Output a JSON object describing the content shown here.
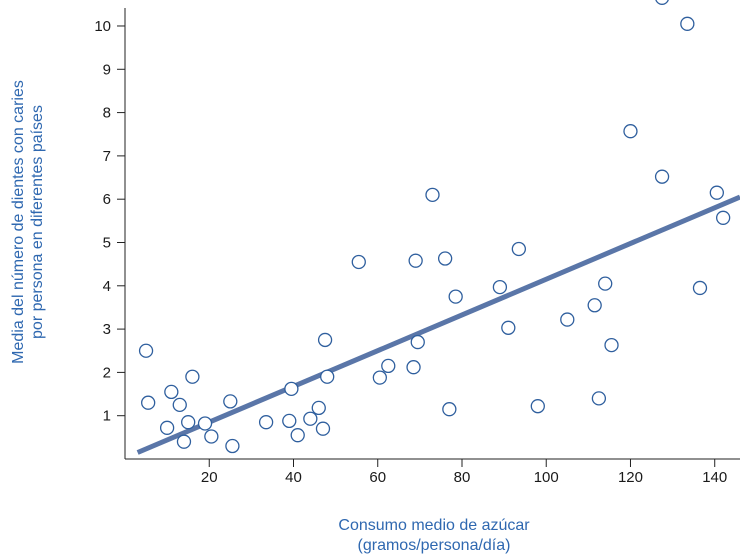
{
  "chart_data": {
    "type": "scatter",
    "xlabel": [
      "Consumo medio de azúcar",
      "(gramos/persona/día)"
    ],
    "ylabel": [
      "Media del número de dientes con caries",
      "por persona en diferentes países"
    ],
    "xlim": [
      0,
      146
    ],
    "ylim": [
      0,
      10.6
    ],
    "xticks": [
      20,
      40,
      60,
      80,
      100,
      120,
      140
    ],
    "yticks": [
      1,
      2,
      3,
      4,
      5,
      6,
      7,
      8,
      9,
      10
    ],
    "grid": false,
    "point_color": "#2f5f9e",
    "line_color": "#5a76a8",
    "axis_label_color": "#2f68b0",
    "points": [
      {
        "x": 5,
        "y": 2.5
      },
      {
        "x": 5.5,
        "y": 1.3
      },
      {
        "x": 10,
        "y": 0.72
      },
      {
        "x": 11,
        "y": 1.55
      },
      {
        "x": 13,
        "y": 1.25
      },
      {
        "x": 14,
        "y": 0.4
      },
      {
        "x": 15,
        "y": 0.85
      },
      {
        "x": 16,
        "y": 1.9
      },
      {
        "x": 19,
        "y": 0.82
      },
      {
        "x": 20.5,
        "y": 0.52
      },
      {
        "x": 25,
        "y": 1.33
      },
      {
        "x": 25.5,
        "y": 0.3
      },
      {
        "x": 33.5,
        "y": 0.85
      },
      {
        "x": 39,
        "y": 0.88
      },
      {
        "x": 39.5,
        "y": 1.62
      },
      {
        "x": 41,
        "y": 0.55
      },
      {
        "x": 44,
        "y": 0.93
      },
      {
        "x": 46,
        "y": 1.18
      },
      {
        "x": 47,
        "y": 0.7
      },
      {
        "x": 47.5,
        "y": 2.75
      },
      {
        "x": 48,
        "y": 1.9
      },
      {
        "x": 55.5,
        "y": 4.55
      },
      {
        "x": 60.5,
        "y": 1.88
      },
      {
        "x": 62.5,
        "y": 2.15
      },
      {
        "x": 68.5,
        "y": 2.12
      },
      {
        "x": 69,
        "y": 4.58
      },
      {
        "x": 69.5,
        "y": 2.7
      },
      {
        "x": 73,
        "y": 6.1
      },
      {
        "x": 76,
        "y": 4.63
      },
      {
        "x": 77,
        "y": 1.15
      },
      {
        "x": 78.5,
        "y": 3.75
      },
      {
        "x": 89,
        "y": 3.97
      },
      {
        "x": 91,
        "y": 3.03
      },
      {
        "x": 93.5,
        "y": 4.85
      },
      {
        "x": 98,
        "y": 1.22
      },
      {
        "x": 105,
        "y": 3.22
      },
      {
        "x": 111.5,
        "y": 3.55
      },
      {
        "x": 112.5,
        "y": 1.4
      },
      {
        "x": 114,
        "y": 4.05
      },
      {
        "x": 115.5,
        "y": 2.63
      },
      {
        "x": 120,
        "y": 7.57
      },
      {
        "x": 127.5,
        "y": 6.52
      },
      {
        "x": 127.5,
        "y": 10.65
      },
      {
        "x": 133.5,
        "y": 10.05
      },
      {
        "x": 136.5,
        "y": 3.95
      },
      {
        "x": 140.5,
        "y": 6.15
      },
      {
        "x": 142,
        "y": 5.57
      }
    ],
    "trendline": {
      "x": [
        3,
        146
      ],
      "y": [
        0.15,
        6.05
      ]
    }
  }
}
